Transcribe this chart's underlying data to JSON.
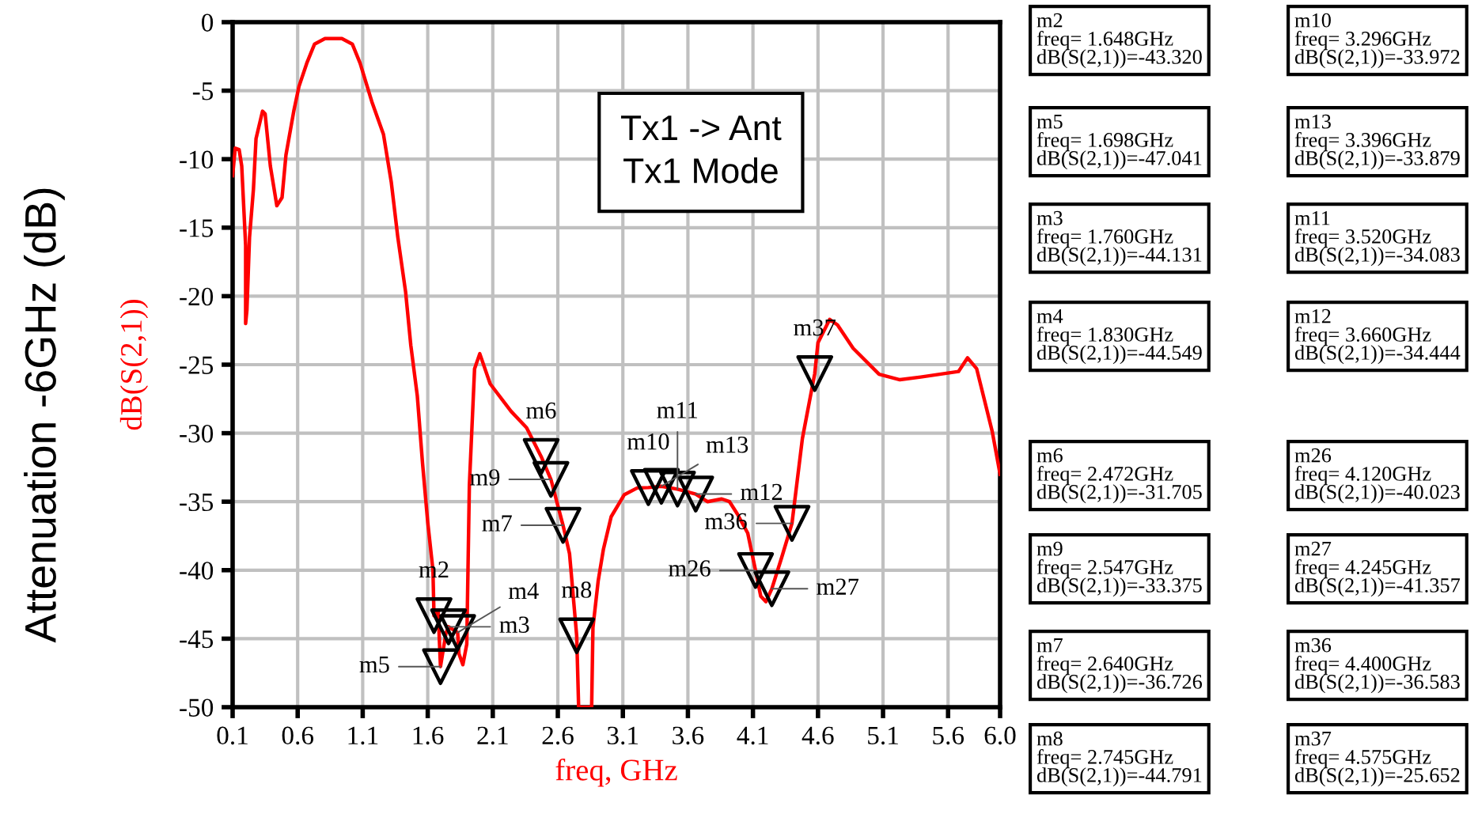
{
  "chart_data": {
    "type": "line",
    "xlabel": "freq, GHz",
    "ylabel": "dB(S(2,1))",
    "xlim": [
      0.1,
      6.0
    ],
    "ylim": [
      -50,
      0
    ],
    "xticks": [
      0.1,
      0.6,
      1.1,
      1.6,
      2.1,
      2.6,
      3.1,
      3.6,
      4.1,
      4.6,
      5.1,
      5.6,
      {
        "value": 6,
        "label": "6.0"
      }
    ],
    "yticks": [
      0,
      -5,
      -10,
      -15,
      -20,
      -25,
      -30,
      -35,
      -40,
      -45,
      -50
    ],
    "grid": true,
    "legend": false,
    "series": [
      {
        "type": "line",
        "color": "#ff0000",
        "marker": "none",
        "x": [
          0.1,
          0.12,
          0.15,
          0.17,
          0.2,
          0.2,
          0.21,
          0.23,
          0.26,
          0.28,
          0.33,
          0.35,
          0.39,
          0.44,
          0.48,
          0.51,
          0.57,
          0.61,
          0.67,
          0.73,
          0.81,
          0.94,
          1.02,
          1.08,
          1.17,
          1.26,
          1.32,
          1.37,
          1.43,
          1.47,
          1.52,
          1.56,
          1.6,
          1.64,
          1.648,
          1.68,
          1.698,
          1.74,
          1.76,
          1.83,
          1.84,
          1.87,
          1.9,
          1.92,
          1.96,
          2.0,
          2.08,
          2.24,
          2.36,
          2.472,
          2.547,
          2.64,
          2.69,
          2.745,
          2.75,
          2.76,
          2.86,
          2.87,
          2.91,
          2.95,
          3.01,
          3.11,
          3.21,
          3.296,
          3.396,
          3.52,
          3.66,
          3.75,
          3.86,
          3.92,
          3.98,
          4.06,
          4.12,
          4.16,
          4.2,
          4.245,
          4.32,
          4.4,
          4.48,
          4.575,
          4.6,
          4.69,
          4.75,
          4.87,
          5.07,
          5.23,
          5.39,
          5.68,
          5.75,
          5.82,
          5.88,
          5.94,
          6.0
        ],
        "values": [
          -11.2,
          -9.2,
          -9.3,
          -10.5,
          -16.3,
          -22,
          -21,
          -15.7,
          -12.2,
          -8.5,
          -6.5,
          -6.7,
          -10.5,
          -13.4,
          -12.8,
          -9.7,
          -6.5,
          -4.7,
          -3,
          -1.6,
          -1.2,
          -1.2,
          -1.6,
          -3,
          -5.8,
          -8.2,
          -11.7,
          -15.7,
          -19.7,
          -23.6,
          -27.3,
          -32.2,
          -36.5,
          -40,
          -43.32,
          -43,
          -47.041,
          -44.6,
          -44.131,
          -44.549,
          -46.1,
          -46.9,
          -45.4,
          -33.8,
          -25.3,
          -24.2,
          -26.4,
          -28.4,
          -29.6,
          -31.705,
          -33.375,
          -36.726,
          -38.8,
          -44.791,
          -46.5,
          -50,
          -50,
          -44.2,
          -40.8,
          -38.5,
          -36.1,
          -34.5,
          -34,
          -33.972,
          -33.879,
          -34.083,
          -34.444,
          -35,
          -34.8,
          -35,
          -35.9,
          -37.3,
          -40.023,
          -41.9,
          -42.3,
          -41.357,
          -39.1,
          -36.583,
          -30.4,
          -25.652,
          -23.4,
          -21.7,
          -22.1,
          -23.8,
          -25.7,
          -26.1,
          -25.9,
          -25.5,
          -24.5,
          -25.3,
          -27.6,
          -29.9,
          -33
        ]
      },
      {
        "type": "scatter",
        "color": "#000000",
        "marker": "triangle",
        "x": [
          1.648,
          1.698,
          1.76,
          1.83,
          2.472,
          2.547,
          2.64,
          2.745,
          3.296,
          3.396,
          3.52,
          3.66,
          4.12,
          4.245,
          4.4,
          4.575
        ],
        "values": [
          -43.32,
          -47.041,
          -44.131,
          -44.549,
          -31.705,
          -33.375,
          -36.726,
          -44.791,
          -33.972,
          -33.879,
          -34.083,
          -34.444,
          -40.023,
          -41.357,
          -36.583,
          -25.652
        ]
      }
    ],
    "annotations": [
      "Tx1 -> Ant\nTx1 Mode",
      "Attenuation -6GHz (dB)",
      "m2\nfreq= 1.648GHz\ndB(S(2,1))=-43.320",
      "m5\nfreq= 1.698GHz\ndB(S(2,1))=-47.041",
      "m3\nfreq= 1.760GHz\ndB(S(2,1))=-44.131",
      "m4\nfreq= 1.830GHz\ndB(S(2,1))=-44.549",
      "m6\nfreq= 2.472GHz\ndB(S(2,1))=-31.705",
      "m9\nfreq= 2.547GHz\ndB(S(2,1))=-33.375",
      "m7\nfreq= 2.640GHz\ndB(S(2,1))=-36.726",
      "m8\nfreq= 2.745GHz\ndB(S(2,1))=-44.791",
      "m10\nfreq= 3.296GHz\ndB(S(2,1))=-33.972",
      "m13\nfreq= 3.396GHz\ndB(S(2,1))=-33.879",
      "m11\nfreq= 3.520GHz\ndB(S(2,1))=-34.083",
      "m12\nfreq= 3.660GHz\ndB(S(2,1))=-34.444",
      "m26\nfreq= 4.120GHz\ndB(S(2,1))=-40.023",
      "m27\nfreq= 4.245GHz\ndB(S(2,1))=-41.357",
      "m36\nfreq= 4.400GHz\ndB(S(2,1))=-36.583",
      "m37\nfreq= 4.575GHz\ndB(S(2,1))=-25.652",
      {
        "text": "m2",
        "x": 1.648,
        "y": -43.32
      },
      {
        "text": "m5",
        "x": 1.698,
        "y": -47.041
      },
      {
        "text": "m3",
        "x": 1.76,
        "y": -44.131
      },
      {
        "text": "m4",
        "x": 1.83,
        "y": -44.549
      },
      {
        "text": "m6",
        "x": 2.472,
        "y": -31.705
      },
      {
        "text": "m9",
        "x": 2.547,
        "y": -33.375
      },
      {
        "text": "m7",
        "x": 2.64,
        "y": -36.726
      },
      {
        "text": "m8",
        "x": 2.745,
        "y": -44.791
      },
      {
        "text": "m10",
        "x": 3.296,
        "y": -33.972
      },
      {
        "text": "m13",
        "x": 3.396,
        "y": -33.879
      },
      {
        "text": "m11",
        "x": 3.52,
        "y": -34.083
      },
      {
        "text": "m12",
        "x": 3.66,
        "y": -34.444
      },
      {
        "text": "m26",
        "x": 4.12,
        "y": -40.023
      },
      {
        "text": "m27",
        "x": 4.245,
        "y": -41.357
      },
      {
        "text": "m36",
        "x": 4.4,
        "y": -36.583
      },
      {
        "text": "m37",
        "x": 4.575,
        "y": -25.652
      }
    ]
  }
}
